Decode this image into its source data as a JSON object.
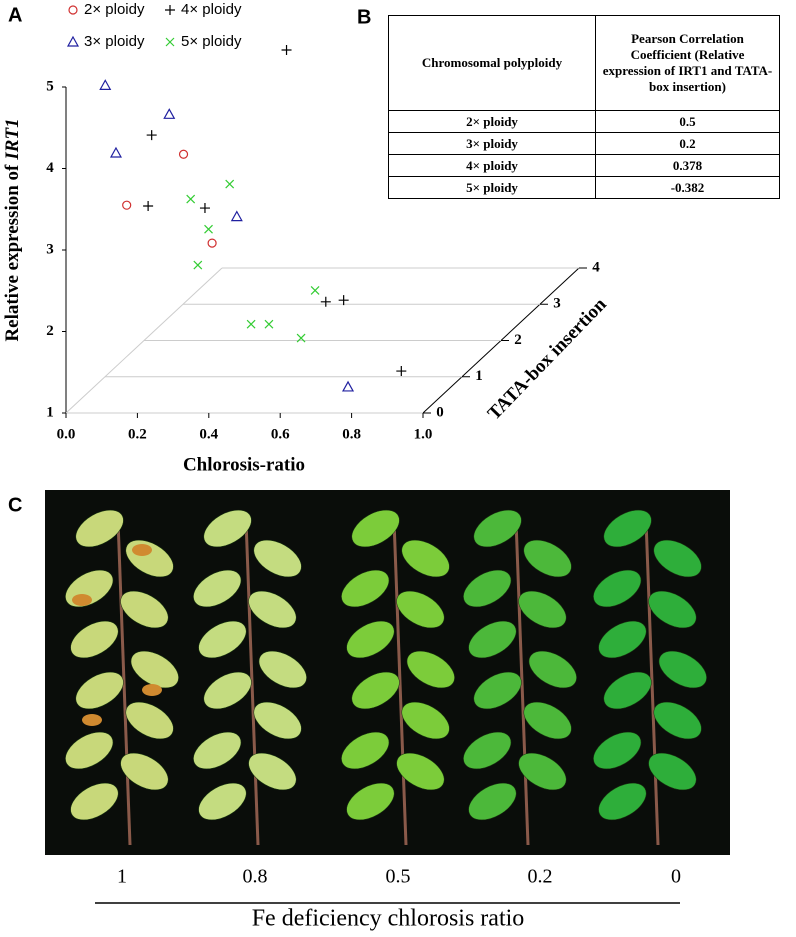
{
  "panel_labels": [
    "A",
    "B",
    "C"
  ],
  "chart_data": {
    "type": "scatter3d",
    "x_label": "Chlorosis-ratio",
    "y_label": "TATA-box insertion",
    "z_label": [
      "Relative expression of",
      "IRT1"
    ],
    "xlim": [
      0,
      1
    ],
    "ylim": [
      0,
      4
    ],
    "zlim": [
      1,
      5
    ],
    "xticks": [
      {
        "value": 0,
        "label": "0.0"
      },
      0.2,
      0.4,
      0.6,
      0.8,
      {
        "value": 1,
        "label": "1.0"
      }
    ],
    "yticks": [
      0,
      1,
      2,
      3,
      4
    ],
    "zticks": [
      1,
      2,
      3,
      4,
      5
    ],
    "grid": true,
    "series": [
      {
        "name": "2× ploidy",
        "color": "#d03030",
        "marker": "circle",
        "x": [
          0.17,
          0.22,
          0.3
        ],
        "y": [
          0,
          1,
          1
        ],
        "z": [
          3.55,
          3.73,
          2.64
        ]
      },
      {
        "name": "3× ploidy",
        "color": "#2020a0",
        "marker": "triangle",
        "x": [
          0.11,
          0.18,
          0.14,
          0.26,
          0.79
        ],
        "y": [
          0,
          1,
          0,
          2,
          0
        ],
        "z": [
          5.02,
          4.22,
          4.19,
          2.52,
          1.32
        ]
      },
      {
        "name": "4× ploidy",
        "color": "#000000",
        "marker": "plus",
        "x": [
          0.29,
          0.24,
          0.23,
          0.28,
          0.4,
          0.45,
          0.83
        ],
        "y": [
          3,
          0,
          0,
          1,
          3,
          3,
          1
        ],
        "z": [
          4.12,
          4.41,
          3.54,
          3.07,
          1.03,
          1.05,
          1.07
        ]
      },
      {
        "name": "5× ploidy",
        "color": "#33cc33",
        "marker": "x",
        "x": [
          0.24,
          0.24,
          0.29,
          0.26,
          0.37,
          0.3,
          0.35,
          0.44
        ],
        "y": [
          2,
          1,
          1,
          1,
          3,
          2,
          2,
          2
        ],
        "z": [
          2.92,
          3.18,
          2.81,
          2.37,
          1.17,
          1.2,
          1.2,
          1.03
        ]
      }
    ]
  },
  "table": {
    "header": [
      "Chromosomal polyploidy",
      "Pearson Correlation Coefficient (Relative expression of IRT1 and TATA-box insertion)"
    ],
    "rows": [
      [
        "2× ploidy",
        0.5
      ],
      [
        "3× ploidy",
        0.2
      ],
      [
        "4× ploidy",
        0.378
      ],
      [
        "5× ploidy",
        -0.382
      ]
    ]
  },
  "photo": {
    "labels": [
      1,
      0.8,
      0.5,
      0.2,
      0
    ],
    "caption": "Fe deficiency chlorosis ratio"
  }
}
